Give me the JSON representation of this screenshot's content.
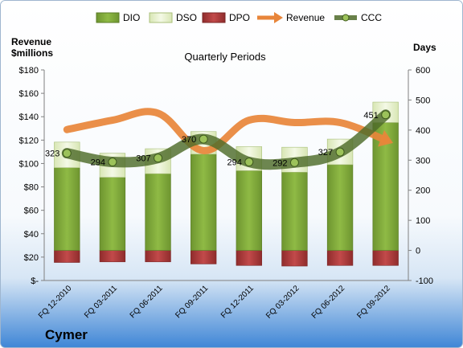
{
  "chart_data": {
    "type": "bar",
    "title": "Quarterly Periods",
    "company": "Cymer",
    "ylabel_left_line1": "Revenue",
    "ylabel_left_line2": "$millions",
    "ylabel_right": "Days",
    "legend_position": "top",
    "grid": false,
    "categories": [
      "FQ 12-2010",
      "FQ 03-2011",
      "FQ 06-2011",
      "FQ 09-2011",
      "FQ 12-2011",
      "FQ 03-2012",
      "FQ 06-2012",
      "FQ 09-2012"
    ],
    "y_left": {
      "min": 0,
      "max": 180,
      "step": 20,
      "ticks": [
        "$-",
        "$20",
        "$40",
        "$60",
        "$80",
        "$100",
        "$120",
        "$140",
        "$160",
        "$180"
      ]
    },
    "y_right": {
      "min": -100,
      "max": 600,
      "step": 100,
      "ticks": [
        "-100",
        "0",
        "100",
        "200",
        "300",
        "400",
        "500",
        "600"
      ]
    },
    "series": [
      {
        "name": "DIO",
        "type": "bar",
        "axis": "right",
        "color": "#7fa63a",
        "values": [
          275,
          243,
          255,
          320,
          265,
          260,
          285,
          425
        ]
      },
      {
        "name": "DSO",
        "type": "bar",
        "axis": "right",
        "color": "#e6f0c8",
        "values": [
          85,
          80,
          83,
          75,
          80,
          83,
          85,
          68
        ]
      },
      {
        "name": "DPO",
        "type": "bar",
        "axis": "right",
        "color": "#b03a3a",
        "values": [
          -40,
          -38,
          -38,
          -45,
          -50,
          -52,
          -50,
          -50
        ]
      },
      {
        "name": "Revenue",
        "type": "line",
        "axis": "left",
        "color": "#e8853a",
        "values": [
          129,
          137,
          143,
          111,
          137,
          135,
          135,
          120
        ]
      },
      {
        "name": "CCC",
        "type": "line",
        "axis": "right",
        "color": "#4e6b2a",
        "values": [
          323,
          294,
          307,
          370,
          294,
          292,
          327,
          451
        ],
        "labels": [
          "323",
          "294",
          "307",
          "370",
          "294",
          "292",
          "327",
          "451"
        ]
      }
    ]
  }
}
